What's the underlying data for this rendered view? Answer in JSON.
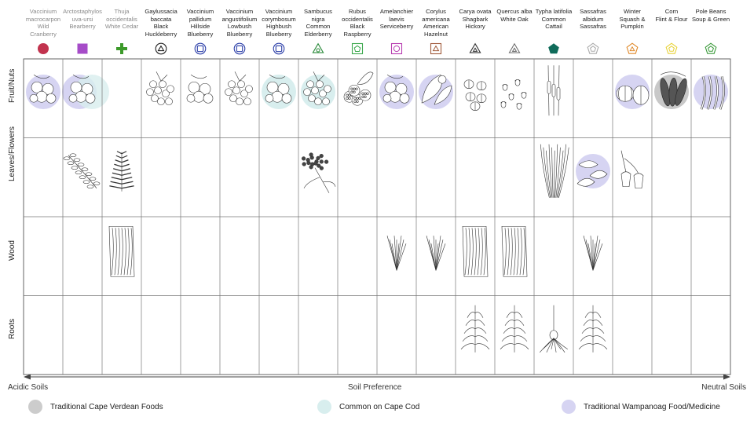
{
  "columns": [
    {
      "name": "Vaccinium macrocarpon Wild Cranberry",
      "lines": "Vaccinium\nmacrocarpon\nWild\nCranberry",
      "style": "gray",
      "symbol": "filled-circle",
      "color": "#c2334e"
    },
    {
      "name": "Arctostaphylos uva-ursi Bearberry",
      "lines": "Arctostaphylos\nuva-ursi\nBearberry",
      "style": "gray",
      "symbol": "filled-square",
      "color": "#a64cc8"
    },
    {
      "name": "Thuja occidentalis White Cedar",
      "lines": "Thuja\noccidentalis\nWhite Cedar",
      "style": "gray",
      "symbol": "green-plus",
      "color": "#3c9a2a"
    },
    {
      "name": "Gaylussacia baccata Black Huckleberry",
      "lines": "Gaylussacia\nbaccata\nBlack\nHuckleberry",
      "style": "dark",
      "symbol": "circle-triangle",
      "color": "#222222"
    },
    {
      "name": "Vaccinium pallidum Hillside Blueberry",
      "lines": "Vaccinium\npallidum\nHillside\nBlueberry",
      "style": "dark",
      "symbol": "circle-square",
      "color": "#2b3ea8"
    },
    {
      "name": "Vaccinium angustifolium Lowbush Blueberry",
      "lines": "Vaccinium\nangustifolium\nLowbush\nBlueberry",
      "style": "dark",
      "symbol": "circle-square",
      "color": "#2b3ea8"
    },
    {
      "name": "Vaccinium corymbosum Highbush Blueberry",
      "lines": "Vaccinium\ncorymbosum\nHighbush\nBlueberry",
      "style": "dark",
      "symbol": "circle-square",
      "color": "#2b3ea8"
    },
    {
      "name": "Sambucus nigra Common Elderberry",
      "lines": "Sambucus\nnigra\nCommon\nElderberry",
      "style": "dark",
      "symbol": "triangle-circle",
      "color": "#2a8a3a"
    },
    {
      "name": "Rubus occidentalis Black Raspberry",
      "lines": "Rubus\noccidentalis\nBlack\nRaspberry",
      "style": "dark",
      "symbol": "square-pentagon",
      "color": "#3ba84c"
    },
    {
      "name": "Amelanchier laevis Serviceberry",
      "lines": "Amelanchier\nlaevis\nServiceberry",
      "style": "dark",
      "symbol": "square-circle",
      "color": "#b63bb0"
    },
    {
      "name": "Corylus americana American Hazelnut",
      "lines": "Corylus\namericana\nAmerican\nHazelnut",
      "style": "dark",
      "symbol": "square-triangle",
      "color": "#a05a3a"
    },
    {
      "name": "Carya ovata Shagbark Hickory",
      "lines": "Carya ovata\nShagbark\nHickory",
      "style": "dark",
      "symbol": "triangle-triangle",
      "color": "#333333"
    },
    {
      "name": "Quercus alba White Oak",
      "lines": "Quercus alba\nWhite Oak",
      "style": "dark",
      "symbol": "triangle-triangle-light",
      "color": "#666666"
    },
    {
      "name": "Typha latifolia Common Cattail",
      "lines": "Typha latifolia\nCommon\nCattail",
      "style": "dark",
      "symbol": "filled-pentagon",
      "color": "#0f6b5a"
    },
    {
      "name": "Sassafras albidum Sassafras",
      "lines": "Sassafras\nalbidum\nSassafras",
      "style": "dark",
      "symbol": "pentagon-pentagon",
      "color": "#aaaaaa"
    },
    {
      "name": "Winter Squash & Pumpkin",
      "lines": "Winter\nSquash &\nPumpkin",
      "style": "dark",
      "symbol": "pentagon-triangle",
      "color": "#e0892a"
    },
    {
      "name": "Corn Flint & Flour",
      "lines": "Corn\nFlint & Flour",
      "style": "dark",
      "symbol": "pentagon-pentagon",
      "color": "#e8d23a"
    },
    {
      "name": "Pole Beans Soup & Green",
      "lines": "Pole Beans\nSoup & Green",
      "style": "dark",
      "symbol": "pentagon-pentagon",
      "color": "#3a9a3a"
    }
  ],
  "rows": [
    {
      "label": "Fruit/Nuts"
    },
    {
      "label": "Leaves/Flowers"
    },
    {
      "label": "Wood"
    },
    {
      "label": "Roots"
    }
  ],
  "axis": {
    "title": "Soil Preference",
    "left": "Acidic Soils",
    "right": "Neutral Soils"
  },
  "legend": [
    {
      "label": "Traditional Cape Verdean Foods",
      "color": "#cccccc"
    },
    {
      "label": "Common on Cape Cod",
      "color": "#d8eeee"
    },
    {
      "label": "Traditional Wampanoag Food/Medicine",
      "color": "#d6d4f2"
    }
  ],
  "highlights": [
    {
      "col": 0,
      "row": 0,
      "type": "wampanoag"
    },
    {
      "col": 1,
      "row": 0,
      "type": "wampanoag"
    },
    {
      "col": 1,
      "row": 0,
      "type": "capecod"
    },
    {
      "col": 6,
      "row": 0,
      "type": "capecod"
    },
    {
      "col": 7,
      "row": 0,
      "type": "capecod"
    },
    {
      "col": 9,
      "row": 0,
      "type": "wampanoag"
    },
    {
      "col": 10,
      "row": 0,
      "type": "wampanoag"
    },
    {
      "col": 14,
      "row": 1,
      "type": "wampanoag"
    },
    {
      "col": 15,
      "row": 0,
      "type": "wampanoag"
    },
    {
      "col": 16,
      "row": 0,
      "type": "capeverdean"
    },
    {
      "col": 17,
      "row": 0,
      "type": "wampanoag"
    }
  ],
  "drawings": [
    {
      "col": 0,
      "row": 0,
      "kind": "berries"
    },
    {
      "col": 1,
      "row": 0,
      "kind": "berries"
    },
    {
      "col": 3,
      "row": 0,
      "kind": "berry-cluster"
    },
    {
      "col": 4,
      "row": 0,
      "kind": "berries"
    },
    {
      "col": 5,
      "row": 0,
      "kind": "berry-cluster"
    },
    {
      "col": 6,
      "row": 0,
      "kind": "berries"
    },
    {
      "col": 7,
      "row": 0,
      "kind": "berry-cluster"
    },
    {
      "col": 8,
      "row": 0,
      "kind": "raspberry"
    },
    {
      "col": 9,
      "row": 0,
      "kind": "berries"
    },
    {
      "col": 10,
      "row": 0,
      "kind": "nut-leaves"
    },
    {
      "col": 11,
      "row": 0,
      "kind": "nuts"
    },
    {
      "col": 12,
      "row": 0,
      "kind": "acorns"
    },
    {
      "col": 13,
      "row": 0,
      "kind": "cattail"
    },
    {
      "col": 15,
      "row": 0,
      "kind": "squash"
    },
    {
      "col": 16,
      "row": 0,
      "kind": "corn"
    },
    {
      "col": 17,
      "row": 0,
      "kind": "beans"
    },
    {
      "col": 1,
      "row": 1,
      "kind": "sprig"
    },
    {
      "col": 2,
      "row": 1,
      "kind": "fern"
    },
    {
      "col": 7,
      "row": 1,
      "kind": "flower-cluster"
    },
    {
      "col": 13,
      "row": 1,
      "kind": "grass"
    },
    {
      "col": 14,
      "row": 1,
      "kind": "leaves"
    },
    {
      "col": 15,
      "row": 1,
      "kind": "blossoms"
    },
    {
      "col": 2,
      "row": 2,
      "kind": "bark"
    },
    {
      "col": 9,
      "row": 2,
      "kind": "twigs"
    },
    {
      "col": 10,
      "row": 2,
      "kind": "twigs"
    },
    {
      "col": 11,
      "row": 2,
      "kind": "bark"
    },
    {
      "col": 12,
      "row": 2,
      "kind": "bark"
    },
    {
      "col": 14,
      "row": 2,
      "kind": "twigs"
    },
    {
      "col": 11,
      "row": 3,
      "kind": "roots"
    },
    {
      "col": 12,
      "row": 3,
      "kind": "roots"
    },
    {
      "col": 13,
      "row": 3,
      "kind": "roots-bulb"
    },
    {
      "col": 14,
      "row": 3,
      "kind": "roots"
    }
  ]
}
